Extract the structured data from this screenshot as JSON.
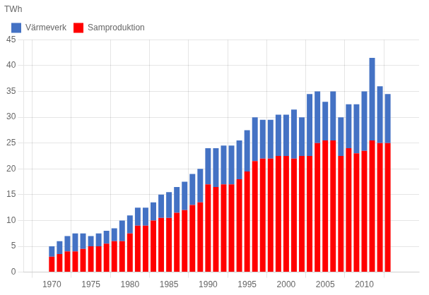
{
  "chart_data": {
    "type": "bar",
    "stacked": true,
    "ylabel": "TWh",
    "x": [
      1970,
      1971,
      1972,
      1973,
      1974,
      1975,
      1976,
      1977,
      1978,
      1979,
      1980,
      1981,
      1982,
      1983,
      1984,
      1985,
      1986,
      1987,
      1988,
      1989,
      1990,
      1991,
      1992,
      1993,
      1994,
      1995,
      1996,
      1997,
      1998,
      1999,
      2000,
      2001,
      2002,
      2003,
      2004,
      2005,
      2006,
      2007,
      2008,
      2009,
      2010,
      2011,
      2012,
      2013
    ],
    "series": [
      {
        "name": "Samproduktion",
        "color": "#FF0000",
        "values": [
          3.0,
          3.5,
          4.0,
          4.0,
          4.5,
          5.0,
          5.0,
          5.5,
          6.0,
          6.0,
          7.5,
          9.0,
          9.0,
          10.0,
          10.5,
          10.5,
          11.5,
          12.0,
          13.0,
          13.5,
          17.0,
          16.5,
          17.0,
          17.0,
          18.0,
          19.5,
          21.5,
          22.0,
          22.0,
          22.5,
          22.5,
          22.0,
          22.5,
          22.5,
          25.0,
          25.5,
          25.5,
          22.5,
          24.0,
          23.0,
          23.5,
          25.5,
          25.0,
          25.0
        ]
      },
      {
        "name": "Värmeverk",
        "color": "#4472C4",
        "values": [
          2.0,
          2.5,
          3.0,
          3.5,
          3.0,
          2.0,
          2.5,
          2.5,
          2.5,
          4.0,
          3.5,
          3.5,
          3.5,
          3.5,
          4.5,
          5.0,
          5.0,
          5.5,
          6.0,
          6.5,
          7.0,
          7.5,
          7.5,
          7.5,
          7.5,
          8.0,
          8.5,
          7.5,
          7.5,
          8.0,
          8.0,
          9.5,
          7.5,
          12.0,
          10.0,
          7.5,
          9.5,
          7.5,
          8.5,
          9.5,
          11.5,
          16.0,
          11.0,
          9.5
        ]
      }
    ],
    "xlim": [
      1969.2,
      2014.2
    ],
    "xticks": [
      1970,
      1975,
      1980,
      1985,
      1990,
      1995,
      2000,
      2005,
      2010
    ],
    "ylim": [
      0,
      45
    ],
    "yticks": [
      0,
      5,
      10,
      15,
      20,
      25,
      30,
      35,
      40,
      45
    ],
    "grid": true,
    "legend": "upper left"
  }
}
